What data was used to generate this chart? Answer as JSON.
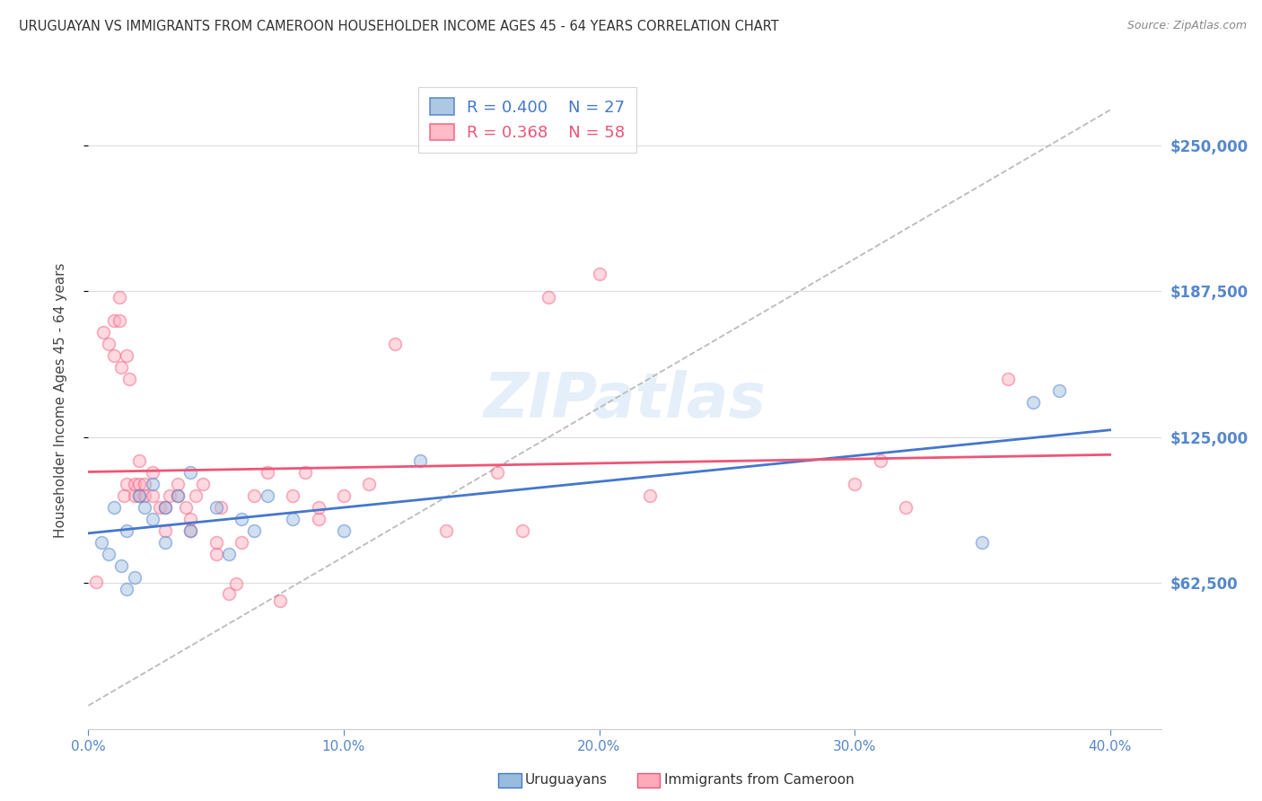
{
  "title": "URUGUAYAN VS IMMIGRANTS FROM CAMEROON HOUSEHOLDER INCOME AGES 45 - 64 YEARS CORRELATION CHART",
  "source": "Source: ZipAtlas.com",
  "xlabel_ticks": [
    "0.0%",
    "10.0%",
    "20.0%",
    "30.0%",
    "40.0%"
  ],
  "xlabel_tick_vals": [
    0.0,
    0.1,
    0.2,
    0.3,
    0.4
  ],
  "ylabel_ticks": [
    "$62,500",
    "$125,000",
    "$187,500",
    "$250,000"
  ],
  "ylabel_tick_vals": [
    62500,
    125000,
    187500,
    250000
  ],
  "ylabel_label": "Householder Income Ages 45 - 64 years",
  "xlim": [
    0.0,
    0.42
  ],
  "ylim": [
    0,
    281250
  ],
  "watermark": "ZIPatlas",
  "legend_uruguayans": "Uruguayans",
  "legend_cameroon": "Immigrants from Cameroon",
  "R_uruguayan": 0.4,
  "N_uruguayan": 27,
  "R_cameroon": 0.368,
  "N_cameroon": 58,
  "color_uruguayan": "#99BBDD",
  "color_cameroon": "#FFAABB",
  "color_uruguayan_line": "#4477CC",
  "color_cameroon_line": "#EE5577",
  "uruguayan_x": [
    0.005,
    0.008,
    0.01,
    0.013,
    0.015,
    0.015,
    0.018,
    0.02,
    0.022,
    0.025,
    0.025,
    0.03,
    0.03,
    0.035,
    0.04,
    0.04,
    0.05,
    0.055,
    0.06,
    0.065,
    0.07,
    0.08,
    0.1,
    0.13,
    0.35,
    0.37,
    0.38
  ],
  "uruguayan_y": [
    80000,
    75000,
    95000,
    70000,
    85000,
    60000,
    65000,
    100000,
    95000,
    90000,
    105000,
    80000,
    95000,
    100000,
    85000,
    110000,
    95000,
    75000,
    90000,
    85000,
    100000,
    90000,
    85000,
    115000,
    80000,
    140000,
    145000
  ],
  "cameroon_x": [
    0.003,
    0.006,
    0.008,
    0.01,
    0.01,
    0.012,
    0.012,
    0.013,
    0.014,
    0.015,
    0.015,
    0.016,
    0.018,
    0.018,
    0.02,
    0.02,
    0.02,
    0.022,
    0.022,
    0.025,
    0.025,
    0.028,
    0.03,
    0.03,
    0.032,
    0.035,
    0.035,
    0.038,
    0.04,
    0.04,
    0.042,
    0.045,
    0.05,
    0.05,
    0.052,
    0.055,
    0.058,
    0.06,
    0.065,
    0.07,
    0.075,
    0.08,
    0.085,
    0.09,
    0.09,
    0.1,
    0.11,
    0.12,
    0.14,
    0.16,
    0.17,
    0.18,
    0.2,
    0.22,
    0.3,
    0.31,
    0.32,
    0.36
  ],
  "cameroon_y": [
    63000,
    170000,
    165000,
    175000,
    160000,
    185000,
    175000,
    155000,
    100000,
    160000,
    105000,
    150000,
    100000,
    105000,
    100000,
    105000,
    115000,
    105000,
    100000,
    100000,
    110000,
    95000,
    85000,
    95000,
    100000,
    100000,
    105000,
    95000,
    85000,
    90000,
    100000,
    105000,
    75000,
    80000,
    95000,
    58000,
    62000,
    80000,
    100000,
    110000,
    55000,
    100000,
    110000,
    90000,
    95000,
    100000,
    105000,
    165000,
    85000,
    110000,
    85000,
    185000,
    195000,
    100000,
    105000,
    115000,
    95000,
    150000
  ],
  "bg_color": "#FFFFFF",
  "grid_color": "#DDDDDD",
  "title_color": "#333333",
  "axis_label_color": "#444444",
  "tick_color": "#5588CC",
  "right_tick_color": "#5588CC",
  "marker_size": 10,
  "marker_alpha": 0.45,
  "marker_linewidth": 1.2
}
